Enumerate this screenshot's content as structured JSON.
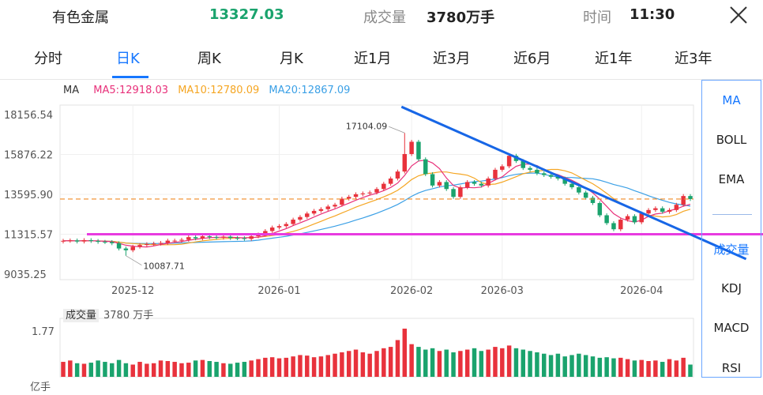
{
  "header": {
    "name": "有色金属",
    "price": "13327.03",
    "volume_label": "成交量",
    "volume_value": "3780万手",
    "time_label": "时间",
    "time_value": "11:30"
  },
  "tabs": [
    "分时",
    "日K",
    "周K",
    "月K",
    "近1月",
    "近3月",
    "近6月",
    "近1年",
    "近3年"
  ],
  "active_tab": "日K",
  "ma_legend": {
    "label": "MA",
    "ma5": "MA5:12918.03",
    "ma10": "MA10:12780.09",
    "ma20": "MA20:12867.09"
  },
  "side_menu": {
    "items": [
      "MA",
      "BOLL",
      "EMA",
      "成交量",
      "KDJ",
      "MACD",
      "RSI"
    ],
    "active": [
      "MA",
      "成交量"
    ]
  },
  "volume_panel": {
    "label": "成交量",
    "value": "3780 万手",
    "y_top_tick": "1.77",
    "y_unit": "亿手"
  },
  "colors": {
    "up": "#e8323c",
    "down": "#1aa36d",
    "ma5": "#e8307a",
    "ma10": "#f5a623",
    "ma20": "#3ba0e6",
    "accent": "#1677ff",
    "trend_line": "#1766e6",
    "support_line": "#e83be0",
    "last_price_line": "#f08a24"
  },
  "chart_data": {
    "type": "candlestick",
    "y_ticks": [
      "18156.54",
      "15876.22",
      "13595.90",
      "11315.57",
      "9035.25"
    ],
    "ylim": [
      9035.25,
      18156.54
    ],
    "x_ticks": [
      {
        "label": "2025-12",
        "index": 10
      },
      {
        "label": "2026-01",
        "index": 31
      },
      {
        "label": "2026-02",
        "index": 50
      },
      {
        "label": "2026-03",
        "index": 63
      },
      {
        "label": "2026-04",
        "index": 83
      }
    ],
    "high_annotation": {
      "label": "17104.09",
      "index": 49,
      "value": 17104.09
    },
    "low_annotation": {
      "label": "10087.71",
      "index": 9,
      "value": 10087.71
    },
    "last_price": 13327.03,
    "support_level": 11315.57,
    "trendline": {
      "start": {
        "index": 49,
        "value": 18600
      },
      "end": {
        "index": 98,
        "value": 9900
      }
    },
    "closes": [
      10940,
      10960,
      10900,
      10980,
      10930,
      10880,
      10870,
      10800,
      10500,
      10400,
      10600,
      10700,
      10750,
      10780,
      10820,
      10950,
      10950,
      11000,
      11150,
      11080,
      11200,
      11150,
      11120,
      11180,
      11100,
      11090,
      11050,
      11200,
      11300,
      11500,
      11700,
      11780,
      11900,
      12150,
      12300,
      12500,
      12650,
      12750,
      12900,
      13000,
      13350,
      13450,
      13600,
      13650,
      13700,
      13900,
      14200,
      14500,
      14900,
      15900,
      16600,
      15600,
      14750,
      14100,
      14300,
      13900,
      13450,
      14000,
      14300,
      14200,
      14100,
      14500,
      15000,
      15200,
      15800,
      15500,
      15100,
      15000,
      14800,
      14700,
      14600,
      14500,
      14200,
      14000,
      13700,
      13400,
      13100,
      12400,
      11950,
      11600,
      12150,
      12350,
      12000,
      12500,
      12700,
      12800,
      12600,
      12700,
      13000,
      13500,
      13327
    ],
    "vol_max": 1.77,
    "volumes": [
      0.55,
      0.6,
      0.5,
      0.48,
      0.52,
      0.6,
      0.55,
      0.5,
      0.62,
      0.5,
      0.45,
      0.55,
      0.48,
      0.5,
      0.6,
      0.58,
      0.55,
      0.5,
      0.52,
      0.6,
      0.62,
      0.58,
      0.55,
      0.5,
      0.48,
      0.52,
      0.55,
      0.6,
      0.65,
      0.7,
      0.72,
      0.68,
      0.7,
      0.75,
      0.8,
      0.78,
      0.72,
      0.75,
      0.8,
      0.85,
      0.9,
      0.95,
      1.0,
      0.9,
      0.85,
      0.95,
      1.05,
      1.1,
      1.35,
      1.77,
      1.2,
      1.1,
      1.0,
      1.05,
      0.95,
      1.0,
      0.9,
      0.95,
      1.0,
      1.05,
      0.95,
      1.0,
      1.1,
      1.05,
      1.15,
      1.05,
      1.0,
      0.95,
      0.9,
      0.85,
      0.8,
      0.85,
      0.75,
      0.8,
      0.85,
      0.8,
      0.75,
      0.7,
      0.72,
      0.68,
      0.7,
      0.65,
      0.6,
      0.62,
      0.58,
      0.6,
      0.55,
      0.65,
      0.6,
      0.7,
      0.45
    ]
  }
}
